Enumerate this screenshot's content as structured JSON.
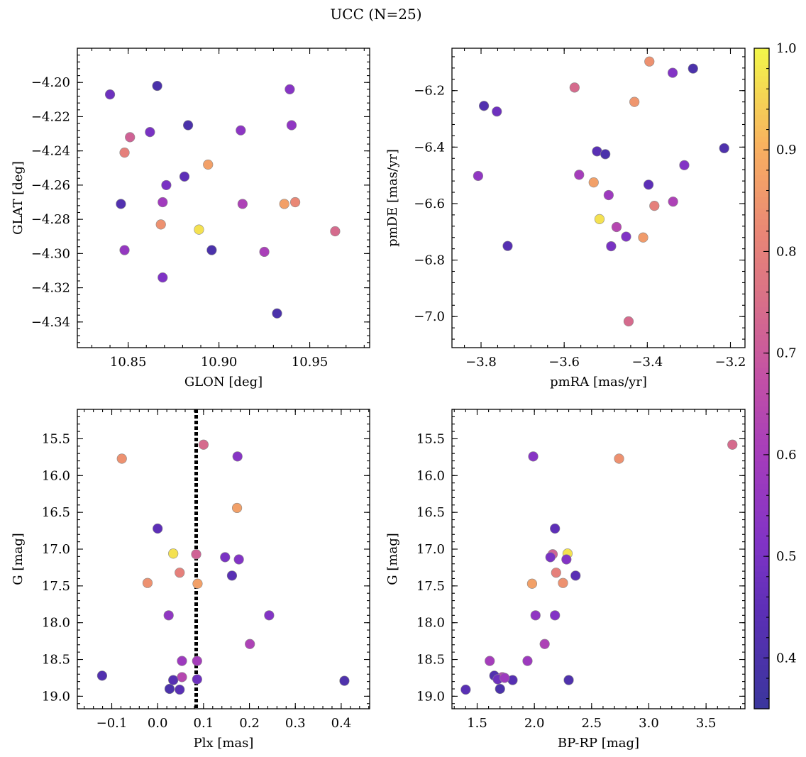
{
  "title": "UCC (N=25)",
  "colorbar": {
    "range": [
      0.35,
      1.0
    ],
    "ticks": [
      0.4,
      0.5,
      0.6,
      0.7,
      0.8,
      0.9,
      1.0
    ],
    "tick_labels": [
      "0.4",
      "0.5",
      "0.6",
      "0.7",
      "0.8",
      "0.9",
      "1.0"
    ],
    "colormap": "plasma"
  },
  "chart_data": [
    {
      "type": "scatter",
      "name": "glon-glat",
      "xlabel": "GLON [deg]",
      "ylabel": "GLAT [deg]",
      "xlim": [
        10.822,
        10.983
      ],
      "ylim": [
        -4.355,
        -4.18
      ],
      "xticks": [
        10.85,
        10.9,
        10.95
      ],
      "xtick_labels": [
        "10.85",
        "10.90",
        "10.95"
      ],
      "yticks": [
        -4.2,
        -4.22,
        -4.24,
        -4.26,
        -4.28,
        -4.3,
        -4.32,
        -4.34
      ],
      "ytick_labels": [
        "−4.20",
        "−4.22",
        "−4.24",
        "−4.26",
        "−4.28",
        "−4.30",
        "−4.32",
        "−4.34"
      ],
      "y_inverted": false,
      "points": [
        {
          "x": 10.84,
          "y": -4.207,
          "c": 0.48
        },
        {
          "x": 10.866,
          "y": -4.202,
          "c": 0.4
        },
        {
          "x": 10.939,
          "y": -4.204,
          "c": 0.53
        },
        {
          "x": 10.851,
          "y": -4.232,
          "c": 0.72
        },
        {
          "x": 10.862,
          "y": -4.229,
          "c": 0.5
        },
        {
          "x": 10.883,
          "y": -4.225,
          "c": 0.4
        },
        {
          "x": 10.912,
          "y": -4.228,
          "c": 0.54
        },
        {
          "x": 10.94,
          "y": -4.225,
          "c": 0.55
        },
        {
          "x": 10.848,
          "y": -4.241,
          "c": 0.8
        },
        {
          "x": 10.894,
          "y": -4.248,
          "c": 0.87
        },
        {
          "x": 10.881,
          "y": -4.255,
          "c": 0.45
        },
        {
          "x": 10.871,
          "y": -4.26,
          "c": 0.5
        },
        {
          "x": 10.846,
          "y": -4.271,
          "c": 0.42
        },
        {
          "x": 10.869,
          "y": -4.27,
          "c": 0.59
        },
        {
          "x": 10.913,
          "y": -4.271,
          "c": 0.62
        },
        {
          "x": 10.936,
          "y": -4.271,
          "c": 0.87
        },
        {
          "x": 10.942,
          "y": -4.27,
          "c": 0.82
        },
        {
          "x": 10.868,
          "y": -4.283,
          "c": 0.84
        },
        {
          "x": 10.889,
          "y": -4.286,
          "c": 0.97
        },
        {
          "x": 10.964,
          "y": -4.287,
          "c": 0.74
        },
        {
          "x": 10.848,
          "y": -4.298,
          "c": 0.56
        },
        {
          "x": 10.896,
          "y": -4.298,
          "c": 0.4
        },
        {
          "x": 10.925,
          "y": -4.299,
          "c": 0.61
        },
        {
          "x": 10.869,
          "y": -4.314,
          "c": 0.51
        },
        {
          "x": 10.932,
          "y": -4.335,
          "c": 0.4
        }
      ]
    },
    {
      "type": "scatter",
      "name": "pmra-pmde",
      "xlabel": "pmRA [mas/yr]",
      "ylabel": "pmDE [mas/yr]",
      "xlim": [
        -3.87,
        -3.165
      ],
      "ylim": [
        -7.11,
        -6.05
      ],
      "xticks": [
        -3.8,
        -3.6,
        -3.4,
        -3.2
      ],
      "xtick_labels": [
        "−3.8",
        "−3.6",
        "−3.4",
        "−3.2"
      ],
      "yticks": [
        -6.2,
        -6.4,
        -6.6,
        -6.8,
        -7.0
      ],
      "ytick_labels": [
        "−6.2",
        "−6.4",
        "−6.6",
        "−6.8",
        "−7.0"
      ],
      "y_inverted": false,
      "points": [
        {
          "x": -3.395,
          "y": -6.097,
          "c": 0.84
        },
        {
          "x": -3.29,
          "y": -6.122,
          "c": 0.4
        },
        {
          "x": -3.339,
          "y": -6.137,
          "c": 0.52
        },
        {
          "x": -3.575,
          "y": -6.189,
          "c": 0.74
        },
        {
          "x": -3.431,
          "y": -6.24,
          "c": 0.85
        },
        {
          "x": -3.793,
          "y": -6.254,
          "c": 0.42
        },
        {
          "x": -3.762,
          "y": -6.274,
          "c": 0.48
        },
        {
          "x": -3.215,
          "y": -6.404,
          "c": 0.41
        },
        {
          "x": -3.521,
          "y": -6.415,
          "c": 0.44
        },
        {
          "x": -3.501,
          "y": -6.425,
          "c": 0.4
        },
        {
          "x": -3.311,
          "y": -6.464,
          "c": 0.52
        },
        {
          "x": -3.564,
          "y": -6.498,
          "c": 0.6
        },
        {
          "x": -3.807,
          "y": -6.502,
          "c": 0.55
        },
        {
          "x": -3.529,
          "y": -6.525,
          "c": 0.87
        },
        {
          "x": -3.397,
          "y": -6.533,
          "c": 0.45
        },
        {
          "x": -3.493,
          "y": -6.57,
          "c": 0.58
        },
        {
          "x": -3.338,
          "y": -6.593,
          "c": 0.62
        },
        {
          "x": -3.383,
          "y": -6.608,
          "c": 0.8
        },
        {
          "x": -3.515,
          "y": -6.655,
          "c": 0.97
        },
        {
          "x": -3.474,
          "y": -6.683,
          "c": 0.64
        },
        {
          "x": -3.451,
          "y": -6.717,
          "c": 0.51
        },
        {
          "x": -3.41,
          "y": -6.72,
          "c": 0.86
        },
        {
          "x": -3.736,
          "y": -6.75,
          "c": 0.43
        },
        {
          "x": -3.487,
          "y": -6.751,
          "c": 0.5
        },
        {
          "x": -3.445,
          "y": -7.017,
          "c": 0.74
        }
      ]
    },
    {
      "type": "scatter",
      "name": "plx-g",
      "xlabel": "Plx [mas]",
      "ylabel": "G [mag]",
      "xlim": [
        -0.175,
        0.462
      ],
      "ylim": [
        19.17,
        15.1
      ],
      "xticks": [
        -0.1,
        0.0,
        0.1,
        0.2,
        0.3,
        0.4
      ],
      "xtick_labels": [
        "−0.1",
        "0.0",
        "0.1",
        "0.2",
        "0.3",
        "0.4"
      ],
      "yticks": [
        15.5,
        16.0,
        16.5,
        17.0,
        17.5,
        18.0,
        18.5,
        19.0
      ],
      "ytick_labels": [
        "15.5",
        "16.0",
        "16.5",
        "17.0",
        "17.5",
        "18.0",
        "18.5",
        "19.0"
      ],
      "y_inverted": true,
      "vline": {
        "x": 0.084,
        "style": "dotted"
      },
      "points": [
        {
          "x": 0.1,
          "y": 15.58,
          "c": 0.74
        },
        {
          "x": 0.174,
          "y": 15.74,
          "c": 0.53
        },
        {
          "x": -0.078,
          "y": 15.77,
          "c": 0.84
        },
        {
          "x": 0.173,
          "y": 16.44,
          "c": 0.87
        },
        {
          "x": 0.0,
          "y": 16.72,
          "c": 0.45
        },
        {
          "x": 0.034,
          "y": 17.06,
          "c": 0.97
        },
        {
          "x": 0.084,
          "y": 17.07,
          "c": 0.72
        },
        {
          "x": 0.147,
          "y": 17.11,
          "c": 0.5
        },
        {
          "x": 0.177,
          "y": 17.14,
          "c": 0.52
        },
        {
          "x": 0.048,
          "y": 17.32,
          "c": 0.8
        },
        {
          "x": 0.162,
          "y": 17.36,
          "c": 0.44
        },
        {
          "x": -0.022,
          "y": 17.46,
          "c": 0.84
        },
        {
          "x": 0.087,
          "y": 17.47,
          "c": 0.87
        },
        {
          "x": 0.024,
          "y": 17.9,
          "c": 0.55
        },
        {
          "x": 0.243,
          "y": 17.9,
          "c": 0.52
        },
        {
          "x": 0.201,
          "y": 18.29,
          "c": 0.62
        },
        {
          "x": 0.053,
          "y": 18.52,
          "c": 0.58
        },
        {
          "x": 0.086,
          "y": 18.52,
          "c": 0.6
        },
        {
          "x": -0.121,
          "y": 18.72,
          "c": 0.42
        },
        {
          "x": 0.053,
          "y": 18.74,
          "c": 0.64
        },
        {
          "x": 0.034,
          "y": 18.78,
          "c": 0.43
        },
        {
          "x": 0.086,
          "y": 18.77,
          "c": 0.48
        },
        {
          "x": 0.407,
          "y": 18.79,
          "c": 0.41
        },
        {
          "x": 0.026,
          "y": 18.9,
          "c": 0.4
        },
        {
          "x": 0.048,
          "y": 18.91,
          "c": 0.44
        }
      ]
    },
    {
      "type": "scatter",
      "name": "bprp-g",
      "xlabel": "BP-RP [mag]",
      "ylabel": "G [mag]",
      "xlim": [
        1.28,
        3.84
      ],
      "ylim": [
        19.17,
        15.1
      ],
      "xticks": [
        1.5,
        2.0,
        2.5,
        3.0,
        3.5
      ],
      "xtick_labels": [
        "1.5",
        "2.0",
        "2.5",
        "3.0",
        "3.5"
      ],
      "yticks": [
        15.5,
        16.0,
        16.5,
        17.0,
        17.5,
        18.0,
        18.5,
        19.0
      ],
      "ytick_labels": [
        "15.5",
        "16.0",
        "16.5",
        "17.0",
        "17.5",
        "18.0",
        "18.5",
        "19.0"
      ],
      "y_inverted": true,
      "points": [
        {
          "x": 3.73,
          "y": 15.58,
          "c": 0.74
        },
        {
          "x": 1.99,
          "y": 15.74,
          "c": 0.53
        },
        {
          "x": 2.74,
          "y": 15.77,
          "c": 0.84
        },
        {
          "x": 2.18,
          "y": 16.72,
          "c": 0.45
        },
        {
          "x": 2.29,
          "y": 17.06,
          "c": 0.97
        },
        {
          "x": 2.16,
          "y": 17.07,
          "c": 0.72
        },
        {
          "x": 2.14,
          "y": 17.11,
          "c": 0.5
        },
        {
          "x": 2.28,
          "y": 17.14,
          "c": 0.52
        },
        {
          "x": 2.19,
          "y": 17.32,
          "c": 0.8
        },
        {
          "x": 2.36,
          "y": 17.36,
          "c": 0.44
        },
        {
          "x": 2.25,
          "y": 17.46,
          "c": 0.84
        },
        {
          "x": 1.98,
          "y": 17.47,
          "c": 0.87
        },
        {
          "x": 2.01,
          "y": 17.9,
          "c": 0.55
        },
        {
          "x": 2.18,
          "y": 17.9,
          "c": 0.52
        },
        {
          "x": 2.09,
          "y": 18.29,
          "c": 0.62
        },
        {
          "x": 1.94,
          "y": 18.52,
          "c": 0.58
        },
        {
          "x": 1.61,
          "y": 18.52,
          "c": 0.6
        },
        {
          "x": 1.65,
          "y": 18.72,
          "c": 0.42
        },
        {
          "x": 1.72,
          "y": 18.74,
          "c": 0.64
        },
        {
          "x": 1.68,
          "y": 18.77,
          "c": 0.48
        },
        {
          "x": 1.81,
          "y": 18.78,
          "c": 0.43
        },
        {
          "x": 2.3,
          "y": 18.78,
          "c": 0.41
        },
        {
          "x": 1.7,
          "y": 18.9,
          "c": 0.4
        },
        {
          "x": 1.4,
          "y": 18.91,
          "c": 0.44
        },
        {
          "x": 1.74,
          "y": 18.75,
          "c": 0.58
        }
      ]
    }
  ]
}
